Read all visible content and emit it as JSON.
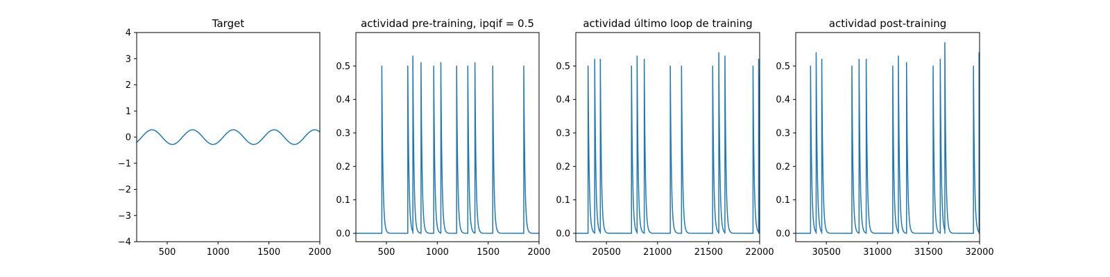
{
  "chart_data": [
    {
      "type": "line",
      "title": "Target",
      "xlim": [
        200,
        2000
      ],
      "ylim": [
        -4,
        4
      ],
      "xticks": [
        500,
        1000,
        1500,
        2000
      ],
      "yticks": [
        -4,
        -3,
        -2,
        -1,
        0,
        1,
        2,
        3,
        4
      ],
      "series_color": "#1f77b4",
      "series": [
        {
          "kind": "sine",
          "amplitude": 0.28,
          "period": 400,
          "peak_x": [
            350,
            750,
            1150,
            1550,
            1950
          ],
          "trough_x": [
            550,
            950,
            1350,
            1750
          ],
          "x_start": 200,
          "x_end": 2000
        }
      ]
    },
    {
      "type": "line",
      "title": "actividad pre-training, ipqif = 0.5",
      "xlim": [
        200,
        2000
      ],
      "ylim": [
        -0.025,
        0.6
      ],
      "xticks": [
        500,
        1000,
        1500,
        2000
      ],
      "yticks": [
        0.0,
        0.1,
        0.2,
        0.3,
        0.4,
        0.5
      ],
      "series_color": "#1f77b4",
      "baseline": 0.0,
      "series": [
        {
          "kind": "spike_train",
          "spikes": [
            {
              "x": 455,
              "peak": 0.5
            },
            {
              "x": 710,
              "peak": 0.5
            },
            {
              "x": 760,
              "peak": 0.53
            },
            {
              "x": 840,
              "peak": 0.51
            },
            {
              "x": 965,
              "peak": 0.5
            },
            {
              "x": 1035,
              "peak": 0.51
            },
            {
              "x": 1190,
              "peak": 0.5
            },
            {
              "x": 1300,
              "peak": 0.5
            },
            {
              "x": 1370,
              "peak": 0.51
            },
            {
              "x": 1545,
              "peak": 0.5
            },
            {
              "x": 1850,
              "peak": 0.5
            }
          ]
        }
      ]
    },
    {
      "type": "line",
      "title": "actividad último loop de training",
      "xlim": [
        20200,
        22000
      ],
      "ylim": [
        -0.025,
        0.6
      ],
      "xticks": [
        20500,
        21000,
        21500,
        22000
      ],
      "yticks": [
        0.0,
        0.1,
        0.2,
        0.3,
        0.4,
        0.5
      ],
      "series_color": "#1f77b4",
      "baseline": 0.0,
      "series": [
        {
          "kind": "spike_train",
          "spikes": [
            {
              "x": 20320,
              "peak": 0.5
            },
            {
              "x": 20385,
              "peak": 0.52
            },
            {
              "x": 20440,
              "peak": 0.52
            },
            {
              "x": 20745,
              "peak": 0.5
            },
            {
              "x": 20800,
              "peak": 0.53
            },
            {
              "x": 20870,
              "peak": 0.52
            },
            {
              "x": 21125,
              "peak": 0.5
            },
            {
              "x": 21235,
              "peak": 0.5
            },
            {
              "x": 21540,
              "peak": 0.5
            },
            {
              "x": 21600,
              "peak": 0.54
            },
            {
              "x": 21660,
              "peak": 0.53
            },
            {
              "x": 21935,
              "peak": 0.5
            },
            {
              "x": 21990,
              "peak": 0.52
            }
          ]
        }
      ]
    },
    {
      "type": "line",
      "title": "actividad post-training",
      "xlim": [
        30200,
        32000
      ],
      "ylim": [
        -0.025,
        0.6
      ],
      "xticks": [
        30500,
        31000,
        31500,
        32000
      ],
      "yticks": [
        0.0,
        0.1,
        0.2,
        0.3,
        0.4,
        0.5
      ],
      "series_color": "#1f77b4",
      "baseline": 0.0,
      "series": [
        {
          "kind": "spike_train",
          "spikes": [
            {
              "x": 30345,
              "peak": 0.5
            },
            {
              "x": 30400,
              "peak": 0.54
            },
            {
              "x": 30455,
              "peak": 0.52
            },
            {
              "x": 30750,
              "peak": 0.5
            },
            {
              "x": 30820,
              "peak": 0.52
            },
            {
              "x": 30890,
              "peak": 0.52
            },
            {
              "x": 31150,
              "peak": 0.5
            },
            {
              "x": 31205,
              "peak": 0.53
            },
            {
              "x": 31285,
              "peak": 0.51
            },
            {
              "x": 31545,
              "peak": 0.5
            },
            {
              "x": 31615,
              "peak": 0.52
            },
            {
              "x": 31660,
              "peak": 0.57
            },
            {
              "x": 31940,
              "peak": 0.5
            },
            {
              "x": 31995,
              "peak": 0.54
            }
          ]
        }
      ]
    }
  ]
}
